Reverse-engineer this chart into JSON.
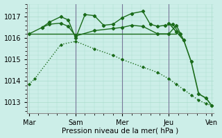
{
  "background_color": "#cceee8",
  "grid_color": "#aaddcc",
  "line_color": "#1a6b1a",
  "ylim": [
    1012.5,
    1017.6
  ],
  "xlim": [
    0,
    100
  ],
  "yticks": [
    1013,
    1014,
    1015,
    1016,
    1017
  ],
  "xtick_positions": [
    1,
    26,
    51,
    76,
    99
  ],
  "xtick_labels": [
    "Mar",
    "Sam",
    "Mer",
    "Jeu",
    "Ven"
  ],
  "xlabel": "Pression niveau de la mer( hPa )",
  "vlines": [
    26,
    51,
    76
  ],
  "series_flat": {
    "x": [
      1,
      8,
      12,
      18,
      24,
      26,
      35,
      45,
      51,
      60,
      68,
      76,
      80
    ],
    "y": [
      1016.2,
      1016.2,
      1016.2,
      1016.2,
      1016.2,
      1016.2,
      1016.2,
      1016.2,
      1016.2,
      1016.2,
      1016.2,
      1016.2,
      1016.2
    ],
    "lw": 1.0
  },
  "series_zigzag": {
    "x": [
      8,
      12,
      18,
      22,
      26,
      31,
      36,
      41,
      46,
      51,
      56,
      62,
      66,
      70,
      74,
      78,
      82
    ],
    "y": [
      1016.5,
      1016.75,
      1017.0,
      1016.85,
      1016.0,
      1017.1,
      1017.05,
      1016.6,
      1016.65,
      1016.95,
      1017.15,
      1017.25,
      1016.65,
      1016.55,
      1016.6,
      1016.65,
      1016.2
    ],
    "lw": 1.0
  },
  "series_smooth": {
    "x": [
      1,
      8,
      12,
      18,
      22,
      26,
      36,
      46,
      51,
      56,
      62,
      70,
      76,
      80,
      84
    ],
    "y": [
      1016.2,
      1016.5,
      1016.65,
      1016.7,
      1016.55,
      1016.1,
      1016.35,
      1016.45,
      1016.5,
      1016.6,
      1016.55,
      1016.2,
      1016.2,
      1016.6,
      1015.9
    ],
    "lw": 1.0
  },
  "series_decline": {
    "x": [
      1,
      4,
      18,
      26,
      36,
      46,
      51,
      62,
      70,
      76,
      80,
      84,
      88,
      92,
      96,
      99
    ],
    "y": [
      1013.85,
      1014.1,
      1015.7,
      1015.85,
      1015.5,
      1015.2,
      1015.0,
      1014.65,
      1014.4,
      1014.1,
      1013.85,
      1013.6,
      1013.35,
      1013.1,
      1012.95,
      1012.85
    ],
    "lw": 1.0
  },
  "series_drop": {
    "x": [
      76,
      80,
      84,
      88,
      92,
      96,
      99
    ],
    "y": [
      1016.7,
      1016.3,
      1015.9,
      1014.9,
      1013.4,
      1013.2,
      1012.85
    ],
    "lw": 1.2
  }
}
